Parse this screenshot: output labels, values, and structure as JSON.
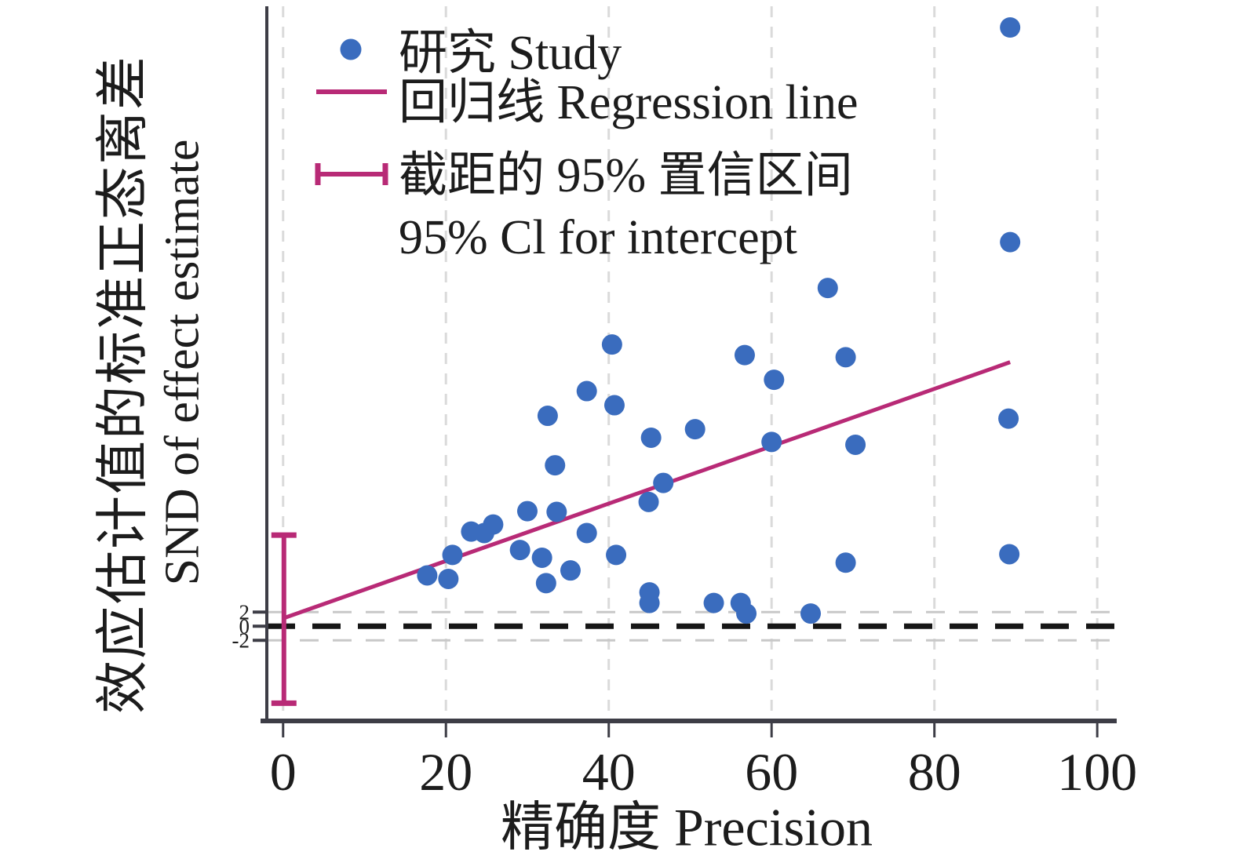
{
  "chart_data": {
    "type": "scatter",
    "title": "",
    "xlabel": "精确度 Precision",
    "ylabel_zh": "效应估计值的标准正态离差",
    "ylabel_en": "SND of effect estimate",
    "xlim": [
      -2.0,
      102.2
    ],
    "ylim": [
      -13.3,
      87.8
    ],
    "x_ticks": [
      0,
      20,
      40,
      60,
      80,
      100
    ],
    "y_ticks": [
      2,
      0,
      -2
    ],
    "h_guides": [
      2,
      -2
    ],
    "zero_line_y": 0,
    "grid": "vertical light dashed lines at every x tick; light dashed horizontal lines at y=2 and y=-2; bold black dashed horizontal line at y=0",
    "legend_position": "top-left inside plot",
    "legend": {
      "study": "研究 Study",
      "regression": "回归线 Regression line",
      "ci_zh": "截距的 95% 置信区间",
      "ci_en": "95% Cl for intercept"
    },
    "series": [
      {
        "name": "研究 Study",
        "type": "points",
        "color": "#3a6cbe",
        "points": [
          [
            17.7,
            7.2
          ],
          [
            20.3,
            6.7
          ],
          [
            20.8,
            10.1
          ],
          [
            23.1,
            13.4
          ],
          [
            24.7,
            13.2
          ],
          [
            25.8,
            14.4
          ],
          [
            29.1,
            10.8
          ],
          [
            30.0,
            16.3
          ],
          [
            31.8,
            9.7
          ],
          [
            32.3,
            6.1
          ],
          [
            32.5,
            29.8
          ],
          [
            33.4,
            22.8
          ],
          [
            33.6,
            16.2
          ],
          [
            35.3,
            7.9
          ],
          [
            37.3,
            33.3
          ],
          [
            37.3,
            13.2
          ],
          [
            40.4,
            39.9
          ],
          [
            40.7,
            31.3
          ],
          [
            40.9,
            10.1
          ],
          [
            44.9,
            17.6
          ],
          [
            45.0,
            4.8
          ],
          [
            45.0,
            3.3
          ],
          [
            45.2,
            26.7
          ],
          [
            46.7,
            20.3
          ],
          [
            50.6,
            27.9
          ],
          [
            52.9,
            3.3
          ],
          [
            56.2,
            3.3
          ],
          [
            56.7,
            38.4
          ],
          [
            56.9,
            1.8
          ],
          [
            60.0,
            26.1
          ],
          [
            60.3,
            34.9
          ],
          [
            64.8,
            1.8
          ],
          [
            66.9,
            47.9
          ],
          [
            69.1,
            38.1
          ],
          [
            69.1,
            9.0
          ],
          [
            70.3,
            25.7
          ],
          [
            89.1,
            29.4
          ],
          [
            89.2,
            10.2
          ],
          [
            89.3,
            54.4
          ],
          [
            89.3,
            84.8
          ]
        ]
      },
      {
        "name": "回归线 Regression line",
        "type": "line",
        "color": "#b82a76",
        "from": [
          0.2,
          1.2
        ],
        "to": [
          89.3,
          37.4
        ]
      },
      {
        "name": "截距的 95% 置信区间 95% Cl for intercept",
        "type": "errorbar",
        "color": "#b82a76",
        "x": 0.1,
        "y_low": -10.9,
        "y_high": 12.9
      }
    ],
    "colors": {
      "axis": "#3d3d46",
      "grid": "#dadada",
      "guide": "#c8c8c8",
      "zero_line": "#161616",
      "text": "#1c1c1c"
    }
  }
}
